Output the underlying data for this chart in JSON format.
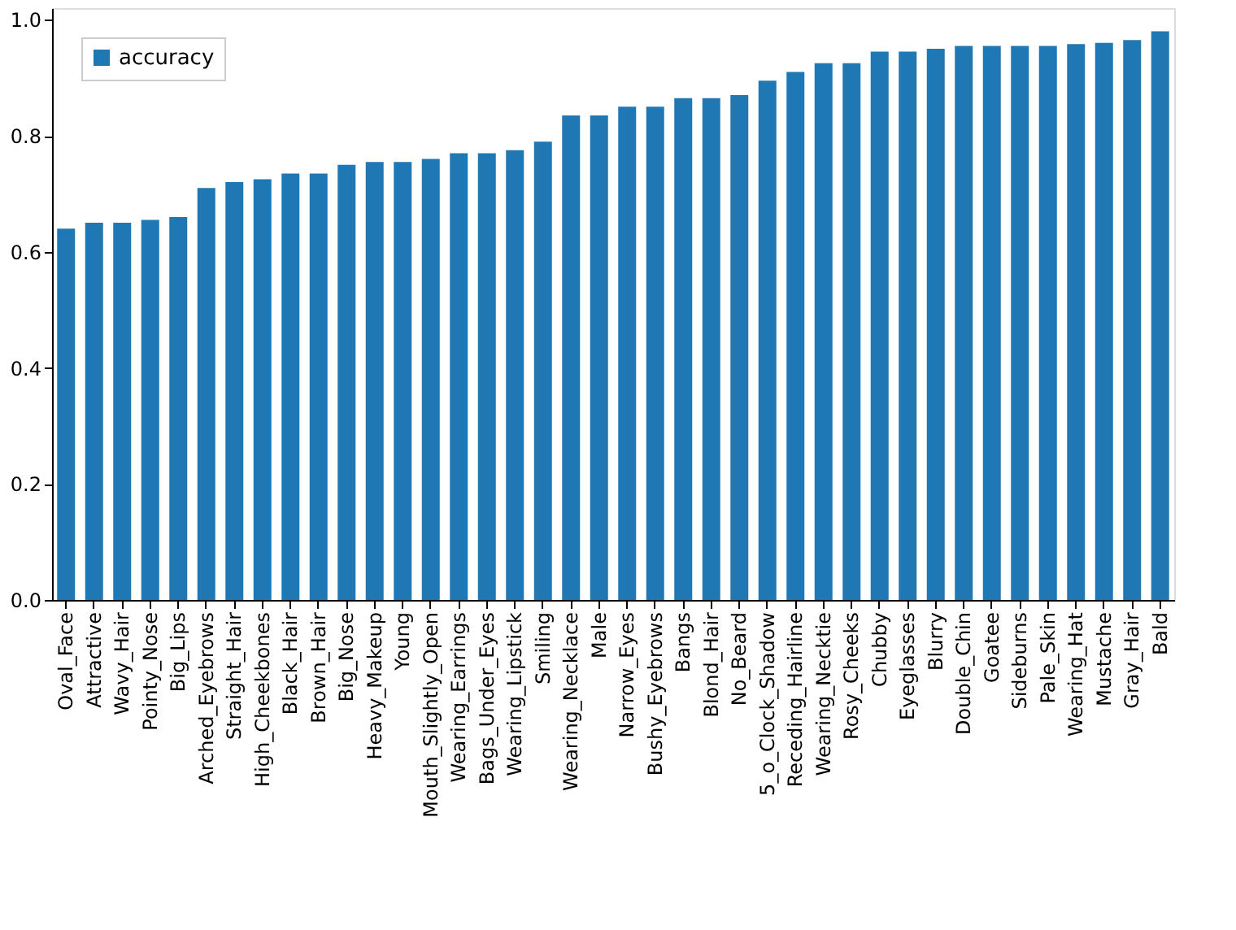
{
  "chart_data": {
    "type": "bar",
    "categories": [
      "Oval_Face",
      "Attractive",
      "Wavy_Hair",
      "Pointy_Nose",
      "Big_Lips",
      "Arched_Eyebrows",
      "Straight_Hair",
      "High_Cheekbones",
      "Black_Hair",
      "Brown_Hair",
      "Big_Nose",
      "Heavy_Makeup",
      "Young",
      "Mouth_Slightly_Open",
      "Wearing_Earrings",
      "Bags_Under_Eyes",
      "Wearing_Lipstick",
      "Smiling",
      "Wearing_Necklace",
      "Male",
      "Narrow_Eyes",
      "Bushy_Eyebrows",
      "Bangs",
      "Blond_Hair",
      "No_Beard",
      "5_o_Clock_Shadow",
      "Receding_Hairline",
      "Wearing_Necktie",
      "Rosy_Cheeks",
      "Chubby",
      "Eyeglasses",
      "Blurry",
      "Double_Chin",
      "Goatee",
      "Sideburns",
      "Pale_Skin",
      "Wearing_Hat",
      "Mustache",
      "Gray_Hair",
      "Bald"
    ],
    "series": [
      {
        "name": "accuracy",
        "color": "#1f77b4",
        "values": [
          0.64,
          0.65,
          0.65,
          0.655,
          0.66,
          0.71,
          0.72,
          0.725,
          0.735,
          0.735,
          0.75,
          0.755,
          0.755,
          0.76,
          0.77,
          0.77,
          0.775,
          0.79,
          0.835,
          0.835,
          0.85,
          0.85,
          0.865,
          0.865,
          0.87,
          0.895,
          0.91,
          0.925,
          0.925,
          0.945,
          0.945,
          0.95,
          0.955,
          0.955,
          0.955,
          0.955,
          0.958,
          0.96,
          0.965,
          0.98
        ]
      }
    ],
    "ylim": [
      0,
      1.02
    ],
    "yticks": [
      {
        "value": 0,
        "label": "0.0"
      },
      0.2,
      0.4,
      0.6,
      0.8,
      {
        "value": 1,
        "label": "1.0"
      }
    ],
    "grid": false,
    "legend": "top left"
  }
}
